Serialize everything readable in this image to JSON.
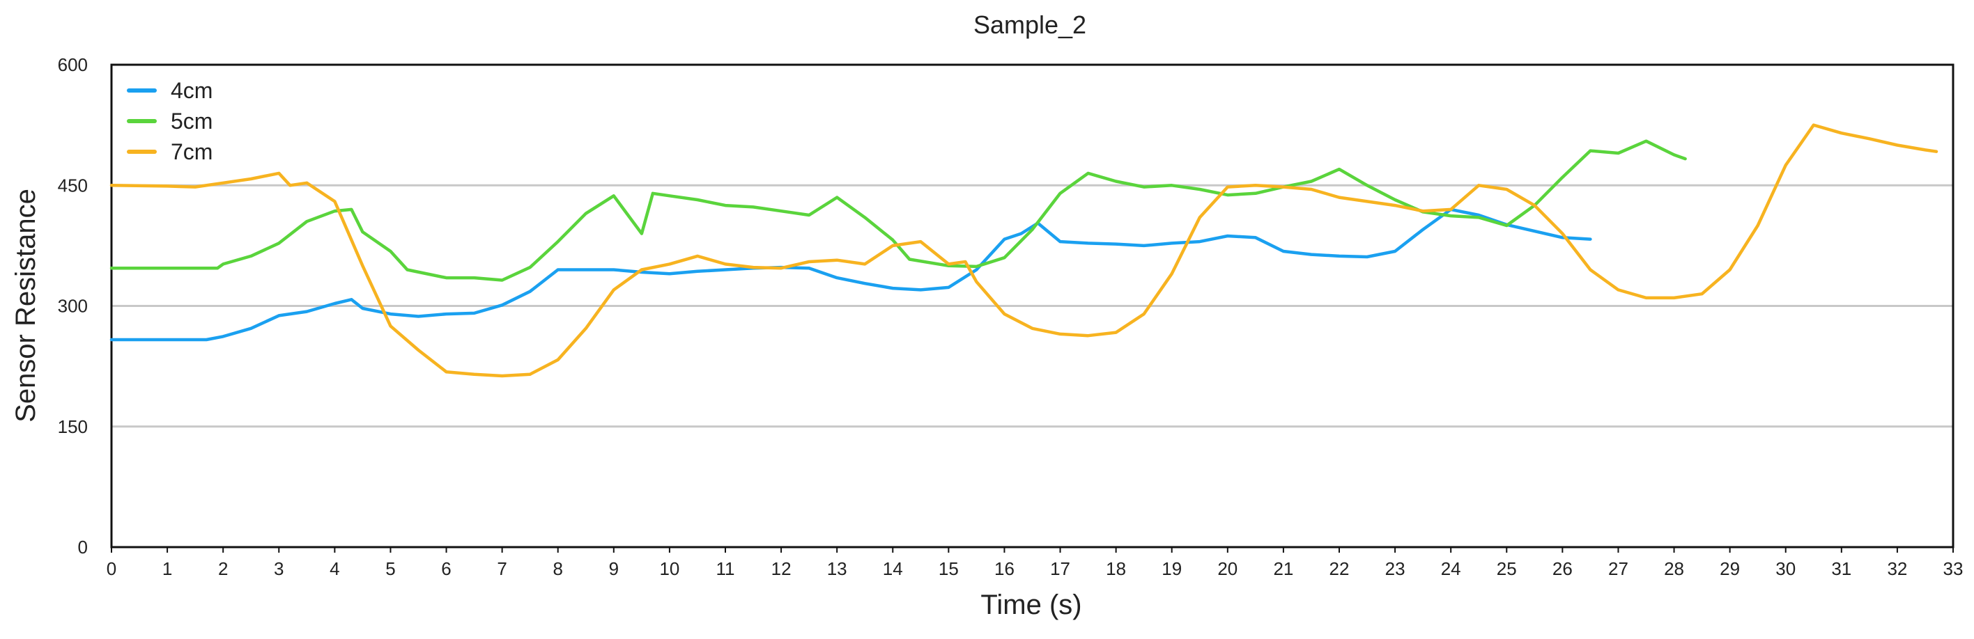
{
  "chart_data": {
    "type": "line",
    "title": "Sample_2",
    "xlabel": "Time (s)",
    "ylabel": "Sensor Resistance",
    "xlim": [
      0,
      33
    ],
    "ylim": [
      0,
      600
    ],
    "x_ticks": [
      "0",
      "1",
      "2",
      "3",
      "4",
      "5",
      "6",
      "7",
      "8",
      "9",
      "10",
      "11",
      "12",
      "13",
      "14",
      "15",
      "16",
      "17",
      "18",
      "19",
      "20",
      "21",
      "22",
      "23",
      "24",
      "25",
      "26",
      "27",
      "28",
      "29",
      "30",
      "31",
      "32",
      "33"
    ],
    "y_ticks": [
      "0",
      "150",
      "300",
      "450",
      "600"
    ],
    "grid": "horizontal",
    "legend_position": "top-left",
    "series": [
      {
        "name": "4cm",
        "color": "#1aa0f0",
        "points": [
          [
            0,
            258
          ],
          [
            1,
            258
          ],
          [
            1.7,
            258
          ],
          [
            2,
            262
          ],
          [
            2.5,
            272
          ],
          [
            3,
            288
          ],
          [
            3.5,
            293
          ],
          [
            4,
            303
          ],
          [
            4.3,
            308
          ],
          [
            4.5,
            297
          ],
          [
            5,
            290
          ],
          [
            5.5,
            287
          ],
          [
            6,
            290
          ],
          [
            6.5,
            291
          ],
          [
            7,
            301
          ],
          [
            7.5,
            318
          ],
          [
            8,
            345
          ],
          [
            8.5,
            345
          ],
          [
            9,
            345
          ],
          [
            9.5,
            342
          ],
          [
            10,
            340
          ],
          [
            10.5,
            343
          ],
          [
            11,
            345
          ],
          [
            11.5,
            347
          ],
          [
            12,
            348
          ],
          [
            12.5,
            347
          ],
          [
            13,
            335
          ],
          [
            13.5,
            328
          ],
          [
            14,
            322
          ],
          [
            14.5,
            320
          ],
          [
            15,
            323
          ],
          [
            15.5,
            345
          ],
          [
            16,
            383
          ],
          [
            16.3,
            390
          ],
          [
            16.6,
            403
          ],
          [
            17,
            380
          ],
          [
            17.5,
            378
          ],
          [
            18,
            377
          ],
          [
            18.5,
            375
          ],
          [
            19,
            378
          ],
          [
            19.5,
            380
          ],
          [
            20,
            387
          ],
          [
            20.5,
            385
          ],
          [
            21,
            368
          ],
          [
            21.5,
            364
          ],
          [
            22,
            362
          ],
          [
            22.5,
            361
          ],
          [
            23,
            368
          ],
          [
            23.5,
            395
          ],
          [
            24,
            420
          ],
          [
            24.5,
            413
          ],
          [
            25,
            401
          ],
          [
            25.5,
            393
          ],
          [
            26,
            385
          ],
          [
            26.5,
            383
          ]
        ]
      },
      {
        "name": "5cm",
        "color": "#5ad43c",
        "points": [
          [
            0,
            347
          ],
          [
            1,
            347
          ],
          [
            1.9,
            347
          ],
          [
            2,
            352
          ],
          [
            2.5,
            362
          ],
          [
            3,
            378
          ],
          [
            3.5,
            405
          ],
          [
            4,
            418
          ],
          [
            4.3,
            420
          ],
          [
            4.5,
            392
          ],
          [
            5,
            368
          ],
          [
            5.3,
            345
          ],
          [
            6,
            335
          ],
          [
            6.5,
            335
          ],
          [
            7,
            332
          ],
          [
            7.5,
            348
          ],
          [
            8,
            380
          ],
          [
            8.5,
            415
          ],
          [
            9,
            437
          ],
          [
            9.5,
            390
          ],
          [
            9.7,
            440
          ],
          [
            10,
            437
          ],
          [
            10.5,
            432
          ],
          [
            11,
            425
          ],
          [
            11.5,
            423
          ],
          [
            12,
            418
          ],
          [
            12.5,
            413
          ],
          [
            13,
            435
          ],
          [
            13.5,
            410
          ],
          [
            14,
            382
          ],
          [
            14.3,
            358
          ],
          [
            15,
            350
          ],
          [
            15.5,
            349
          ],
          [
            16,
            360
          ],
          [
            16.5,
            395
          ],
          [
            17,
            440
          ],
          [
            17.5,
            465
          ],
          [
            18,
            455
          ],
          [
            18.5,
            448
          ],
          [
            19,
            450
          ],
          [
            19.5,
            445
          ],
          [
            20,
            438
          ],
          [
            20.5,
            440
          ],
          [
            21,
            448
          ],
          [
            21.5,
            455
          ],
          [
            22,
            470
          ],
          [
            22.5,
            450
          ],
          [
            23,
            432
          ],
          [
            23.5,
            417
          ],
          [
            24,
            412
          ],
          [
            24.5,
            410
          ],
          [
            25,
            400
          ],
          [
            25.5,
            425
          ],
          [
            26,
            460
          ],
          [
            26.5,
            493
          ],
          [
            27,
            490
          ],
          [
            27.5,
            505
          ],
          [
            28,
            488
          ],
          [
            28.2,
            483
          ]
        ]
      },
      {
        "name": "7cm",
        "color": "#f7b320",
        "points": [
          [
            0,
            450
          ],
          [
            1,
            449
          ],
          [
            1.5,
            448
          ],
          [
            2,
            453
          ],
          [
            2.5,
            458
          ],
          [
            3,
            465
          ],
          [
            3.2,
            450
          ],
          [
            3.5,
            453
          ],
          [
            4,
            430
          ],
          [
            4.5,
            350
          ],
          [
            5,
            275
          ],
          [
            5.5,
            245
          ],
          [
            6,
            218
          ],
          [
            6.5,
            215
          ],
          [
            7,
            213
          ],
          [
            7.5,
            215
          ],
          [
            8,
            233
          ],
          [
            8.5,
            272
          ],
          [
            9,
            320
          ],
          [
            9.5,
            345
          ],
          [
            10,
            352
          ],
          [
            10.5,
            362
          ],
          [
            11,
            352
          ],
          [
            11.5,
            348
          ],
          [
            12,
            347
          ],
          [
            12.5,
            355
          ],
          [
            13,
            357
          ],
          [
            13.5,
            352
          ],
          [
            14,
            375
          ],
          [
            14.5,
            380
          ],
          [
            15,
            352
          ],
          [
            15.3,
            355
          ],
          [
            15.5,
            330
          ],
          [
            16,
            290
          ],
          [
            16.5,
            272
          ],
          [
            17,
            265
          ],
          [
            17.5,
            263
          ],
          [
            18,
            267
          ],
          [
            18.5,
            290
          ],
          [
            19,
            340
          ],
          [
            19.5,
            410
          ],
          [
            20,
            448
          ],
          [
            20.5,
            450
          ],
          [
            21,
            448
          ],
          [
            21.5,
            445
          ],
          [
            22,
            435
          ],
          [
            22.5,
            430
          ],
          [
            23,
            425
          ],
          [
            23.5,
            418
          ],
          [
            24,
            420
          ],
          [
            24.5,
            450
          ],
          [
            25,
            445
          ],
          [
            25.5,
            425
          ],
          [
            26,
            390
          ],
          [
            26.5,
            345
          ],
          [
            27,
            320
          ],
          [
            27.5,
            310
          ],
          [
            28,
            310
          ],
          [
            28.5,
            315
          ],
          [
            29,
            345
          ],
          [
            29.5,
            400
          ],
          [
            30,
            475
          ],
          [
            30.5,
            525
          ],
          [
            31,
            515
          ],
          [
            31.5,
            508
          ],
          [
            32,
            500
          ],
          [
            32.5,
            494
          ],
          [
            32.7,
            492
          ]
        ]
      }
    ]
  }
}
